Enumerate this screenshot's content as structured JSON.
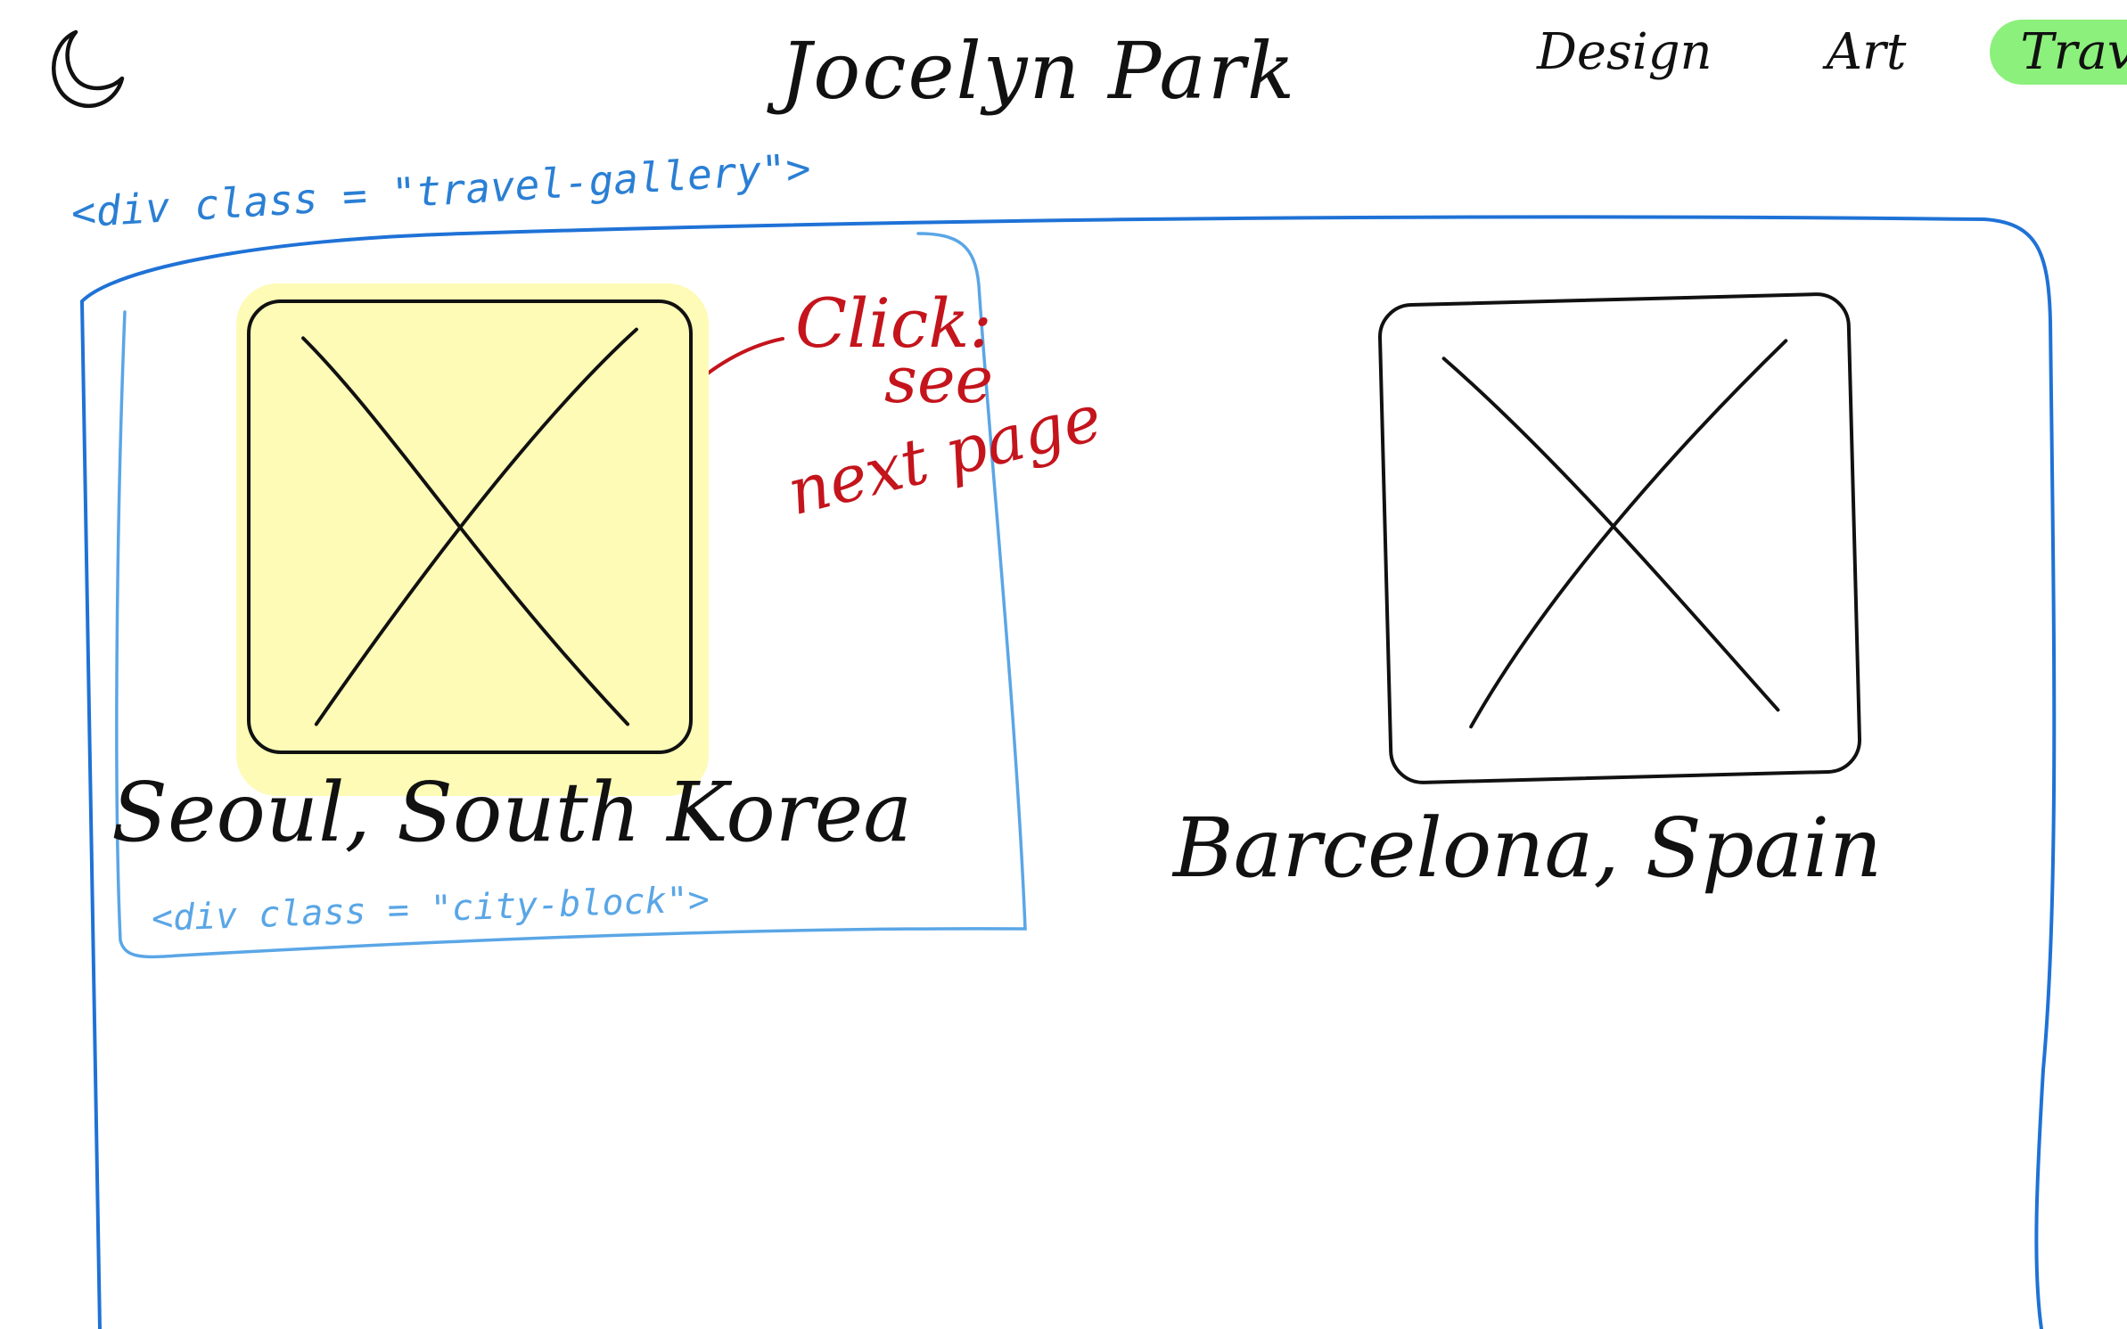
{
  "header": {
    "logo_icon": "moon-icon",
    "title": "Jocelyn Park",
    "nav": [
      {
        "label": "Design",
        "active": false
      },
      {
        "label": "Art",
        "active": false
      },
      {
        "label": "Travel",
        "active": true
      }
    ]
  },
  "annotations": {
    "gallery_tag": "<div class = \"travel-gallery\">",
    "city_block_tag": "<div class = \"city-block\">",
    "click_note": {
      "line1": "Click:",
      "line2": "see",
      "line3": "next page"
    }
  },
  "gallery": {
    "cities": [
      {
        "name": "Seoul, South Korea",
        "image_icon": "image-placeholder-icon",
        "highlighted": true
      },
      {
        "name": "Barcelona, Spain",
        "image_icon": "image-placeholder-icon",
        "highlighted": false
      }
    ]
  },
  "colors": {
    "active_nav": "#8cf07c",
    "gallery_outline": "#1f72d6",
    "city_block_outline": "#5aa6e6",
    "annotation_red": "#c4141c",
    "highlight": "#fdfbb6",
    "ink": "#111111"
  }
}
